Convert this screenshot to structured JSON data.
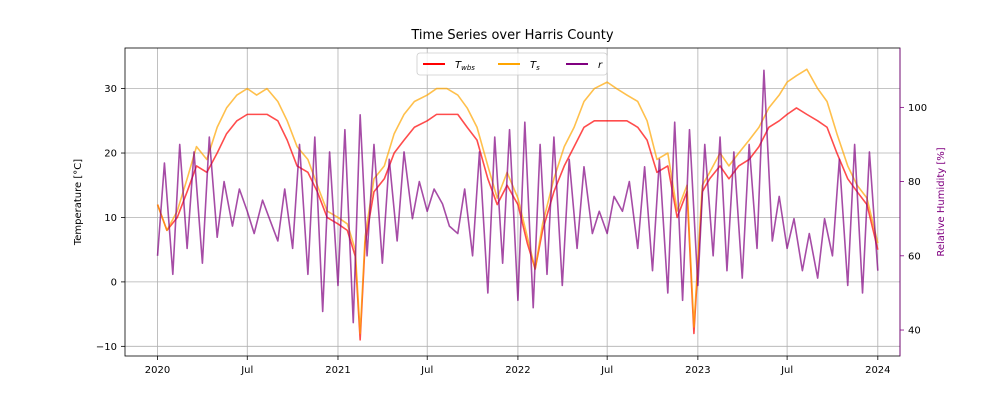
{
  "chart_data": {
    "type": "line",
    "title": "Time Series over Harris County",
    "x_axis": {
      "type": "date",
      "range": [
        "2019-10-27",
        "2024-02-15"
      ],
      "ticks": [
        {
          "date": "2020-01-01",
          "label": "2020"
        },
        {
          "date": "2020-07-01",
          "label": "Jul"
        },
        {
          "date": "2021-01-01",
          "label": "2021"
        },
        {
          "date": "2021-07-01",
          "label": "Jul"
        },
        {
          "date": "2022-01-01",
          "label": "2022"
        },
        {
          "date": "2022-07-01",
          "label": "Jul"
        },
        {
          "date": "2023-01-01",
          "label": "2023"
        },
        {
          "date": "2023-07-01",
          "label": "Jul"
        },
        {
          "date": "2024-01-01",
          "label": "2024"
        }
      ]
    },
    "y_left": {
      "label": "Temperature [°C]",
      "range": [
        -11.5,
        36.3
      ],
      "ticks": [
        -10,
        0,
        10,
        20,
        30
      ]
    },
    "y_right": {
      "label": "Relative Humidity [%]",
      "range": [
        33,
        116
      ],
      "ticks": [
        40,
        60,
        80,
        100
      ],
      "color": "#800080"
    },
    "grid": true,
    "legend": {
      "placement": "upper center",
      "columns": 3,
      "entries": [
        {
          "base": "T",
          "sub": "wbs",
          "series": "Twbs"
        },
        {
          "base": "T",
          "sub": "s",
          "series": "Ts"
        },
        {
          "base": "r",
          "sub": "",
          "series": "r"
        }
      ]
    },
    "series": [
      {
        "name": "Twbs",
        "axis": "left",
        "color": "#ff0000",
        "opacity": 0.7,
        "points": [
          [
            "2020-01-01",
            12
          ],
          [
            "2020-01-20",
            8
          ],
          [
            "2020-02-10",
            10
          ],
          [
            "2020-03-01",
            14
          ],
          [
            "2020-03-20",
            18
          ],
          [
            "2020-04-10",
            17
          ],
          [
            "2020-05-01",
            20
          ],
          [
            "2020-05-20",
            23
          ],
          [
            "2020-06-10",
            25
          ],
          [
            "2020-07-01",
            26
          ],
          [
            "2020-07-20",
            26
          ],
          [
            "2020-08-10",
            26
          ],
          [
            "2020-09-01",
            25
          ],
          [
            "2020-09-20",
            22
          ],
          [
            "2020-10-10",
            18
          ],
          [
            "2020-11-01",
            17
          ],
          [
            "2020-11-20",
            14
          ],
          [
            "2020-12-10",
            10
          ],
          [
            "2021-01-01",
            9
          ],
          [
            "2021-01-20",
            8
          ],
          [
            "2021-02-05",
            4
          ],
          [
            "2021-02-15",
            -9
          ],
          [
            "2021-02-25",
            6
          ],
          [
            "2021-03-15",
            14
          ],
          [
            "2021-04-05",
            16
          ],
          [
            "2021-04-25",
            20
          ],
          [
            "2021-05-15",
            22
          ],
          [
            "2021-06-05",
            24
          ],
          [
            "2021-07-01",
            25
          ],
          [
            "2021-07-20",
            26
          ],
          [
            "2021-08-10",
            26
          ],
          [
            "2021-09-01",
            26
          ],
          [
            "2021-09-20",
            24
          ],
          [
            "2021-10-10",
            22
          ],
          [
            "2021-11-01",
            16
          ],
          [
            "2021-11-20",
            12
          ],
          [
            "2021-12-10",
            15
          ],
          [
            "2022-01-01",
            12
          ],
          [
            "2022-01-20",
            6
          ],
          [
            "2022-02-05",
            2
          ],
          [
            "2022-02-20",
            8
          ],
          [
            "2022-03-15",
            14
          ],
          [
            "2022-04-05",
            18
          ],
          [
            "2022-04-25",
            21
          ],
          [
            "2022-05-15",
            24
          ],
          [
            "2022-06-05",
            25
          ],
          [
            "2022-07-01",
            25
          ],
          [
            "2022-07-20",
            25
          ],
          [
            "2022-08-10",
            25
          ],
          [
            "2022-09-01",
            24
          ],
          [
            "2022-09-20",
            22
          ],
          [
            "2022-10-10",
            17
          ],
          [
            "2022-11-01",
            18
          ],
          [
            "2022-11-20",
            10
          ],
          [
            "2022-12-10",
            14
          ],
          [
            "2022-12-24",
            -8
          ],
          [
            "2023-01-10",
            14
          ],
          [
            "2023-01-25",
            16
          ],
          [
            "2023-02-15",
            18
          ],
          [
            "2023-03-05",
            16
          ],
          [
            "2023-03-25",
            18
          ],
          [
            "2023-04-15",
            19
          ],
          [
            "2023-05-05",
            21
          ],
          [
            "2023-05-25",
            24
          ],
          [
            "2023-06-15",
            25
          ],
          [
            "2023-07-01",
            26
          ],
          [
            "2023-07-20",
            27
          ],
          [
            "2023-08-10",
            26
          ],
          [
            "2023-09-01",
            25
          ],
          [
            "2023-09-20",
            24
          ],
          [
            "2023-10-10",
            20
          ],
          [
            "2023-11-01",
            16
          ],
          [
            "2023-11-20",
            14
          ],
          [
            "2023-12-10",
            12
          ],
          [
            "2024-01-01",
            5
          ]
        ]
      },
      {
        "name": "Ts",
        "axis": "left",
        "color": "#ffa500",
        "opacity": 0.7,
        "points": [
          [
            "2020-01-01",
            12
          ],
          [
            "2020-01-20",
            8
          ],
          [
            "2020-02-10",
            11
          ],
          [
            "2020-03-01",
            16
          ],
          [
            "2020-03-20",
            21
          ],
          [
            "2020-04-10",
            19
          ],
          [
            "2020-05-01",
            24
          ],
          [
            "2020-05-20",
            27
          ],
          [
            "2020-06-10",
            29
          ],
          [
            "2020-07-01",
            30
          ],
          [
            "2020-07-20",
            29
          ],
          [
            "2020-08-10",
            30
          ],
          [
            "2020-09-01",
            28
          ],
          [
            "2020-09-20",
            25
          ],
          [
            "2020-10-10",
            21
          ],
          [
            "2020-11-01",
            19
          ],
          [
            "2020-11-20",
            15
          ],
          [
            "2020-12-10",
            11
          ],
          [
            "2021-01-01",
            10
          ],
          [
            "2021-01-20",
            9
          ],
          [
            "2021-02-05",
            5
          ],
          [
            "2021-02-15",
            -8
          ],
          [
            "2021-02-25",
            7
          ],
          [
            "2021-03-15",
            16
          ],
          [
            "2021-04-05",
            18
          ],
          [
            "2021-04-25",
            23
          ],
          [
            "2021-05-15",
            26
          ],
          [
            "2021-06-05",
            28
          ],
          [
            "2021-07-01",
            29
          ],
          [
            "2021-07-20",
            30
          ],
          [
            "2021-08-10",
            30
          ],
          [
            "2021-09-01",
            29
          ],
          [
            "2021-09-20",
            27
          ],
          [
            "2021-10-10",
            24
          ],
          [
            "2021-11-01",
            18
          ],
          [
            "2021-11-20",
            13
          ],
          [
            "2021-12-10",
            17
          ],
          [
            "2022-01-01",
            13
          ],
          [
            "2022-01-20",
            7
          ],
          [
            "2022-02-05",
            2
          ],
          [
            "2022-02-20",
            9
          ],
          [
            "2022-03-15",
            16
          ],
          [
            "2022-04-05",
            21
          ],
          [
            "2022-04-25",
            24
          ],
          [
            "2022-05-15",
            28
          ],
          [
            "2022-06-05",
            30
          ],
          [
            "2022-07-01",
            31
          ],
          [
            "2022-07-20",
            30
          ],
          [
            "2022-08-10",
            29
          ],
          [
            "2022-09-01",
            28
          ],
          [
            "2022-09-20",
            25
          ],
          [
            "2022-10-10",
            19
          ],
          [
            "2022-11-01",
            20
          ],
          [
            "2022-11-20",
            11
          ],
          [
            "2022-12-10",
            15
          ],
          [
            "2022-12-24",
            -7
          ],
          [
            "2023-01-10",
            15
          ],
          [
            "2023-01-25",
            17
          ],
          [
            "2023-02-15",
            20
          ],
          [
            "2023-03-05",
            18
          ],
          [
            "2023-03-25",
            20
          ],
          [
            "2023-04-15",
            22
          ],
          [
            "2023-05-05",
            24
          ],
          [
            "2023-05-25",
            27
          ],
          [
            "2023-06-15",
            29
          ],
          [
            "2023-07-01",
            31
          ],
          [
            "2023-07-20",
            32
          ],
          [
            "2023-08-10",
            33
          ],
          [
            "2023-09-01",
            30
          ],
          [
            "2023-09-20",
            28
          ],
          [
            "2023-10-10",
            23
          ],
          [
            "2023-11-01",
            18
          ],
          [
            "2023-11-20",
            15
          ],
          [
            "2023-12-10",
            13
          ],
          [
            "2024-01-01",
            6
          ]
        ]
      },
      {
        "name": "r",
        "axis": "right",
        "color": "#800080",
        "opacity": 0.7,
        "points": [
          [
            "2020-01-01",
            60
          ],
          [
            "2020-01-15",
            85
          ],
          [
            "2020-02-01",
            55
          ],
          [
            "2020-02-15",
            90
          ],
          [
            "2020-03-01",
            62
          ],
          [
            "2020-03-15",
            88
          ],
          [
            "2020-04-01",
            58
          ],
          [
            "2020-04-15",
            92
          ],
          [
            "2020-05-01",
            65
          ],
          [
            "2020-05-15",
            80
          ],
          [
            "2020-06-01",
            68
          ],
          [
            "2020-06-15",
            78
          ],
          [
            "2020-07-01",
            72
          ],
          [
            "2020-07-15",
            66
          ],
          [
            "2020-08-01",
            75
          ],
          [
            "2020-08-15",
            70
          ],
          [
            "2020-09-01",
            64
          ],
          [
            "2020-09-15",
            78
          ],
          [
            "2020-10-01",
            62
          ],
          [
            "2020-10-15",
            90
          ],
          [
            "2020-11-01",
            55
          ],
          [
            "2020-11-15",
            92
          ],
          [
            "2020-12-01",
            45
          ],
          [
            "2020-12-15",
            88
          ],
          [
            "2021-01-01",
            52
          ],
          [
            "2021-01-15",
            94
          ],
          [
            "2021-02-01",
            42
          ],
          [
            "2021-02-15",
            98
          ],
          [
            "2021-03-01",
            60
          ],
          [
            "2021-03-15",
            90
          ],
          [
            "2021-04-01",
            58
          ],
          [
            "2021-04-15",
            86
          ],
          [
            "2021-05-01",
            64
          ],
          [
            "2021-05-15",
            88
          ],
          [
            "2021-06-01",
            70
          ],
          [
            "2021-06-15",
            80
          ],
          [
            "2021-07-01",
            72
          ],
          [
            "2021-07-15",
            78
          ],
          [
            "2021-08-01",
            74
          ],
          [
            "2021-08-15",
            68
          ],
          [
            "2021-09-01",
            66
          ],
          [
            "2021-09-15",
            78
          ],
          [
            "2021-10-01",
            60
          ],
          [
            "2021-10-15",
            88
          ],
          [
            "2021-11-01",
            50
          ],
          [
            "2021-11-15",
            92
          ],
          [
            "2021-12-01",
            58
          ],
          [
            "2021-12-15",
            94
          ],
          [
            "2022-01-01",
            48
          ],
          [
            "2022-01-15",
            96
          ],
          [
            "2022-02-01",
            46
          ],
          [
            "2022-02-15",
            90
          ],
          [
            "2022-03-01",
            55
          ],
          [
            "2022-03-15",
            92
          ],
          [
            "2022-04-01",
            52
          ],
          [
            "2022-04-15",
            86
          ],
          [
            "2022-05-01",
            62
          ],
          [
            "2022-05-15",
            84
          ],
          [
            "2022-06-01",
            66
          ],
          [
            "2022-06-15",
            72
          ],
          [
            "2022-07-01",
            66
          ],
          [
            "2022-07-15",
            76
          ],
          [
            "2022-08-01",
            72
          ],
          [
            "2022-08-15",
            80
          ],
          [
            "2022-09-01",
            62
          ],
          [
            "2022-09-15",
            84
          ],
          [
            "2022-10-01",
            56
          ],
          [
            "2022-10-15",
            86
          ],
          [
            "2022-11-01",
            50
          ],
          [
            "2022-11-15",
            96
          ],
          [
            "2022-12-01",
            48
          ],
          [
            "2022-12-15",
            94
          ],
          [
            "2023-01-01",
            52
          ],
          [
            "2023-01-15",
            90
          ],
          [
            "2023-02-01",
            60
          ],
          [
            "2023-02-15",
            92
          ],
          [
            "2023-03-01",
            56
          ],
          [
            "2023-03-15",
            88
          ],
          [
            "2023-04-01",
            54
          ],
          [
            "2023-04-15",
            90
          ],
          [
            "2023-05-01",
            62
          ],
          [
            "2023-05-15",
            110
          ],
          [
            "2023-06-01",
            64
          ],
          [
            "2023-06-15",
            76
          ],
          [
            "2023-07-01",
            62
          ],
          [
            "2023-07-15",
            70
          ],
          [
            "2023-08-01",
            56
          ],
          [
            "2023-08-15",
            66
          ],
          [
            "2023-09-01",
            54
          ],
          [
            "2023-09-15",
            70
          ],
          [
            "2023-10-01",
            60
          ],
          [
            "2023-10-15",
            86
          ],
          [
            "2023-11-01",
            52
          ],
          [
            "2023-11-15",
            90
          ],
          [
            "2023-12-01",
            50
          ],
          [
            "2023-12-15",
            88
          ],
          [
            "2024-01-01",
            56
          ]
        ]
      }
    ]
  }
}
